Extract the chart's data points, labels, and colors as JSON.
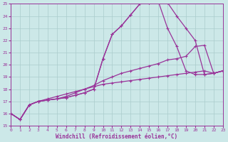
{
  "xlabel": "Windchill (Refroidissement éolien,°C)",
  "xlim": [
    0,
    23
  ],
  "ylim": [
    15,
    25
  ],
  "yticks": [
    15,
    16,
    17,
    18,
    19,
    20,
    21,
    22,
    23,
    24,
    25
  ],
  "xticks": [
    0,
    1,
    2,
    3,
    4,
    5,
    6,
    7,
    8,
    9,
    10,
    11,
    12,
    13,
    14,
    15,
    16,
    17,
    18,
    19,
    20,
    21,
    22,
    23
  ],
  "bg_color": "#cce8e8",
  "grid_color": "#aacccc",
  "line_color": "#993399",
  "line1_y": [
    16.0,
    15.5,
    16.7,
    17.0,
    17.1,
    17.2,
    17.3,
    17.5,
    17.7,
    18.0,
    20.5,
    22.5,
    23.2,
    24.1,
    25.0,
    25.1,
    25.2,
    25.1,
    24.0,
    23.0,
    22.0,
    19.2,
    19.3,
    19.5
  ],
  "line2_y": [
    16.0,
    15.5,
    16.7,
    17.0,
    17.1,
    17.2,
    17.3,
    17.5,
    17.7,
    18.0,
    20.5,
    22.5,
    23.2,
    24.1,
    25.0,
    25.1,
    25.2,
    23.0,
    21.5,
    19.5,
    19.2,
    19.2,
    19.3,
    19.5
  ],
  "line3_y": [
    16.0,
    15.5,
    16.7,
    17.0,
    17.1,
    17.2,
    17.4,
    17.7,
    18.0,
    18.3,
    18.7,
    19.0,
    19.3,
    19.5,
    19.7,
    19.9,
    20.1,
    20.4,
    20.5,
    20.7,
    21.5,
    21.6,
    19.3,
    19.5
  ],
  "line4_y": [
    16.0,
    15.5,
    16.7,
    17.0,
    17.2,
    17.4,
    17.6,
    17.8,
    18.0,
    18.2,
    18.4,
    18.5,
    18.6,
    18.7,
    18.8,
    18.9,
    19.0,
    19.1,
    19.2,
    19.3,
    19.4,
    19.5,
    19.3,
    19.5
  ]
}
